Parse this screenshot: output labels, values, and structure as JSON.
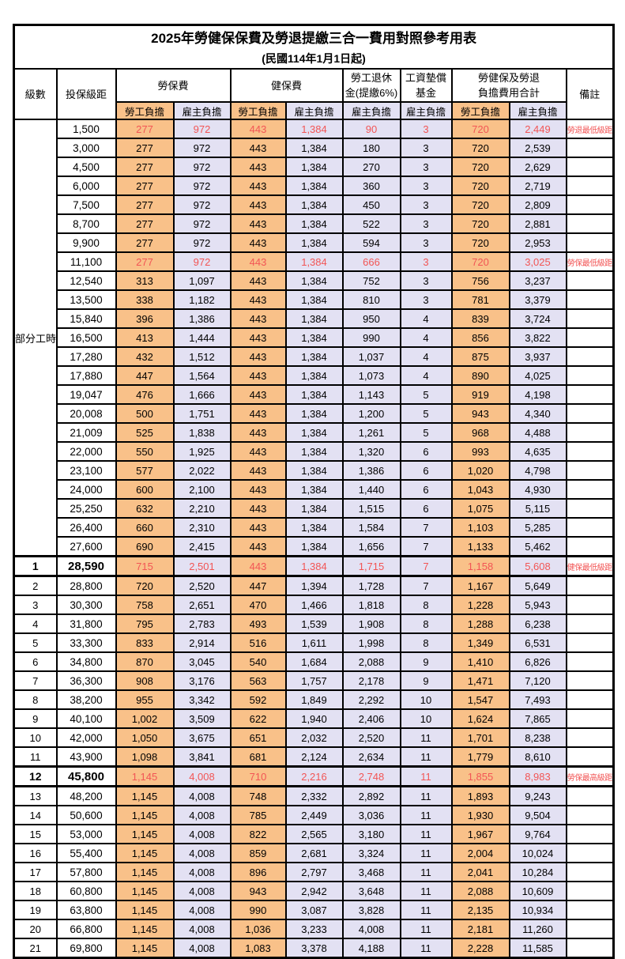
{
  "title": "2025年勞健保保費及勞退提繳三合一費用對照參考用表",
  "subtitle": "(民國114年1月1日起)",
  "header": {
    "level": "級數",
    "bracket": "投保級距",
    "labor_insurance": "勞保費",
    "health_insurance": "健保費",
    "pension_line1": "勞工退休",
    "pension_line2": "金(提繳6%)",
    "wage_fund_line1": "工資墊償",
    "wage_fund_line2": "基金",
    "total_line1": "勞健保及勞退",
    "total_line2": "負擔費用合計",
    "remark": "備註",
    "employee": "勞工負擔",
    "employer": "雇主負擔"
  },
  "part_time_label": "部分工時",
  "colors": {
    "employee_bg": "#f9c189",
    "employer_bg": "#e3e1f3",
    "highlight_text": "#f25555",
    "remark_text": "#fb4b4b",
    "border": "#000000"
  },
  "rows": [
    {
      "level": "",
      "bracket": "1,500",
      "c": [
        "277",
        "972",
        "443",
        "1,384",
        "90",
        "3",
        "720",
        "2,449"
      ],
      "remark": "勞退最低級距",
      "red": true,
      "em": false,
      "thick": false
    },
    {
      "level": "",
      "bracket": "3,000",
      "c": [
        "277",
        "972",
        "443",
        "1,384",
        "180",
        "3",
        "720",
        "2,539"
      ],
      "remark": "",
      "red": false,
      "em": false,
      "thick": false
    },
    {
      "level": "",
      "bracket": "4,500",
      "c": [
        "277",
        "972",
        "443",
        "1,384",
        "270",
        "3",
        "720",
        "2,629"
      ],
      "remark": "",
      "red": false,
      "em": false,
      "thick": false
    },
    {
      "level": "",
      "bracket": "6,000",
      "c": [
        "277",
        "972",
        "443",
        "1,384",
        "360",
        "3",
        "720",
        "2,719"
      ],
      "remark": "",
      "red": false,
      "em": false,
      "thick": false
    },
    {
      "level": "",
      "bracket": "7,500",
      "c": [
        "277",
        "972",
        "443",
        "1,384",
        "450",
        "3",
        "720",
        "2,809"
      ],
      "remark": "",
      "red": false,
      "em": false,
      "thick": false
    },
    {
      "level": "",
      "bracket": "8,700",
      "c": [
        "277",
        "972",
        "443",
        "1,384",
        "522",
        "3",
        "720",
        "2,881"
      ],
      "remark": "",
      "red": false,
      "em": false,
      "thick": false
    },
    {
      "level": "",
      "bracket": "9,900",
      "c": [
        "277",
        "972",
        "443",
        "1,384",
        "594",
        "3",
        "720",
        "2,953"
      ],
      "remark": "",
      "red": false,
      "em": false,
      "thick": false
    },
    {
      "level": "",
      "bracket": "11,100",
      "c": [
        "277",
        "972",
        "443",
        "1,384",
        "666",
        "3",
        "720",
        "3,025"
      ],
      "remark": "勞保最低級距",
      "red": true,
      "em": false,
      "thick": false
    },
    {
      "level": "",
      "bracket": "12,540",
      "c": [
        "313",
        "1,097",
        "443",
        "1,384",
        "752",
        "3",
        "756",
        "3,237"
      ],
      "remark": "",
      "red": false,
      "em": false,
      "thick": false
    },
    {
      "level": "",
      "bracket": "13,500",
      "c": [
        "338",
        "1,182",
        "443",
        "1,384",
        "810",
        "3",
        "781",
        "3,379"
      ],
      "remark": "",
      "red": false,
      "em": false,
      "thick": false
    },
    {
      "level": "",
      "bracket": "15,840",
      "c": [
        "396",
        "1,386",
        "443",
        "1,384",
        "950",
        "4",
        "839",
        "3,724"
      ],
      "remark": "",
      "red": false,
      "em": false,
      "thick": false
    },
    {
      "level": "",
      "bracket": "16,500",
      "c": [
        "413",
        "1,444",
        "443",
        "1,384",
        "990",
        "4",
        "856",
        "3,822"
      ],
      "remark": "",
      "red": false,
      "em": false,
      "thick": false
    },
    {
      "level": "",
      "bracket": "17,280",
      "c": [
        "432",
        "1,512",
        "443",
        "1,384",
        "1,037",
        "4",
        "875",
        "3,937"
      ],
      "remark": "",
      "red": false,
      "em": false,
      "thick": false
    },
    {
      "level": "",
      "bracket": "17,880",
      "c": [
        "447",
        "1,564",
        "443",
        "1,384",
        "1,073",
        "4",
        "890",
        "4,025"
      ],
      "remark": "",
      "red": false,
      "em": false,
      "thick": false
    },
    {
      "level": "",
      "bracket": "19,047",
      "c": [
        "476",
        "1,666",
        "443",
        "1,384",
        "1,143",
        "5",
        "919",
        "4,198"
      ],
      "remark": "",
      "red": false,
      "em": false,
      "thick": false
    },
    {
      "level": "",
      "bracket": "20,008",
      "c": [
        "500",
        "1,751",
        "443",
        "1,384",
        "1,200",
        "5",
        "943",
        "4,340"
      ],
      "remark": "",
      "red": false,
      "em": false,
      "thick": false
    },
    {
      "level": "",
      "bracket": "21,009",
      "c": [
        "525",
        "1,838",
        "443",
        "1,384",
        "1,261",
        "5",
        "968",
        "4,488"
      ],
      "remark": "",
      "red": false,
      "em": false,
      "thick": false
    },
    {
      "level": "",
      "bracket": "22,000",
      "c": [
        "550",
        "1,925",
        "443",
        "1,384",
        "1,320",
        "6",
        "993",
        "4,635"
      ],
      "remark": "",
      "red": false,
      "em": false,
      "thick": false
    },
    {
      "level": "",
      "bracket": "23,100",
      "c": [
        "577",
        "2,022",
        "443",
        "1,384",
        "1,386",
        "6",
        "1,020",
        "4,798"
      ],
      "remark": "",
      "red": false,
      "em": false,
      "thick": false
    },
    {
      "level": "",
      "bracket": "24,000",
      "c": [
        "600",
        "2,100",
        "443",
        "1,384",
        "1,440",
        "6",
        "1,043",
        "4,930"
      ],
      "remark": "",
      "red": false,
      "em": false,
      "thick": false
    },
    {
      "level": "",
      "bracket": "25,250",
      "c": [
        "632",
        "2,210",
        "443",
        "1,384",
        "1,515",
        "6",
        "1,075",
        "5,115"
      ],
      "remark": "",
      "red": false,
      "em": false,
      "thick": false
    },
    {
      "level": "",
      "bracket": "26,400",
      "c": [
        "660",
        "2,310",
        "443",
        "1,384",
        "1,584",
        "7",
        "1,103",
        "5,285"
      ],
      "remark": "",
      "red": false,
      "em": false,
      "thick": false
    },
    {
      "level": "",
      "bracket": "27,600",
      "c": [
        "690",
        "2,415",
        "443",
        "1,384",
        "1,656",
        "7",
        "1,133",
        "5,462"
      ],
      "remark": "",
      "red": false,
      "em": false,
      "thick": false
    },
    {
      "level": "1",
      "bracket": "28,590",
      "c": [
        "715",
        "2,501",
        "443",
        "1,384",
        "1,715",
        "7",
        "1,158",
        "5,608"
      ],
      "remark": "健保最低級距",
      "red": true,
      "em": true,
      "thick": true
    },
    {
      "level": "2",
      "bracket": "28,800",
      "c": [
        "720",
        "2,520",
        "447",
        "1,394",
        "1,728",
        "7",
        "1,167",
        "5,649"
      ],
      "remark": "",
      "red": false,
      "em": false,
      "thick": false
    },
    {
      "level": "3",
      "bracket": "30,300",
      "c": [
        "758",
        "2,651",
        "470",
        "1,466",
        "1,818",
        "8",
        "1,228",
        "5,943"
      ],
      "remark": "",
      "red": false,
      "em": false,
      "thick": false
    },
    {
      "level": "4",
      "bracket": "31,800",
      "c": [
        "795",
        "2,783",
        "493",
        "1,539",
        "1,908",
        "8",
        "1,288",
        "6,238"
      ],
      "remark": "",
      "red": false,
      "em": false,
      "thick": false
    },
    {
      "level": "5",
      "bracket": "33,300",
      "c": [
        "833",
        "2,914",
        "516",
        "1,611",
        "1,998",
        "8",
        "1,349",
        "6,531"
      ],
      "remark": "",
      "red": false,
      "em": false,
      "thick": false
    },
    {
      "level": "6",
      "bracket": "34,800",
      "c": [
        "870",
        "3,045",
        "540",
        "1,684",
        "2,088",
        "9",
        "1,410",
        "6,826"
      ],
      "remark": "",
      "red": false,
      "em": false,
      "thick": false
    },
    {
      "level": "7",
      "bracket": "36,300",
      "c": [
        "908",
        "3,176",
        "563",
        "1,757",
        "2,178",
        "9",
        "1,471",
        "7,120"
      ],
      "remark": "",
      "red": false,
      "em": false,
      "thick": false
    },
    {
      "level": "8",
      "bracket": "38,200",
      "c": [
        "955",
        "3,342",
        "592",
        "1,849",
        "2,292",
        "10",
        "1,547",
        "7,493"
      ],
      "remark": "",
      "red": false,
      "em": false,
      "thick": false
    },
    {
      "level": "9",
      "bracket": "40,100",
      "c": [
        "1,002",
        "3,509",
        "622",
        "1,940",
        "2,406",
        "10",
        "1,624",
        "7,865"
      ],
      "remark": "",
      "red": false,
      "em": false,
      "thick": false
    },
    {
      "level": "10",
      "bracket": "42,000",
      "c": [
        "1,050",
        "3,675",
        "651",
        "2,032",
        "2,520",
        "11",
        "1,701",
        "8,238"
      ],
      "remark": "",
      "red": false,
      "em": false,
      "thick": false
    },
    {
      "level": "11",
      "bracket": "43,900",
      "c": [
        "1,098",
        "3,841",
        "681",
        "2,124",
        "2,634",
        "11",
        "1,779",
        "8,610"
      ],
      "remark": "",
      "red": false,
      "em": false,
      "thick": false
    },
    {
      "level": "12",
      "bracket": "45,800",
      "c": [
        "1,145",
        "4,008",
        "710",
        "2,216",
        "2,748",
        "11",
        "1,855",
        "8,983"
      ],
      "remark": "勞保最高級距",
      "red": true,
      "em": true,
      "thick": true
    },
    {
      "level": "13",
      "bracket": "48,200",
      "c": [
        "1,145",
        "4,008",
        "748",
        "2,332",
        "2,892",
        "11",
        "1,893",
        "9,243"
      ],
      "remark": "",
      "red": false,
      "em": false,
      "thick": false
    },
    {
      "level": "14",
      "bracket": "50,600",
      "c": [
        "1,145",
        "4,008",
        "785",
        "2,449",
        "3,036",
        "11",
        "1,930",
        "9,504"
      ],
      "remark": "",
      "red": false,
      "em": false,
      "thick": false
    },
    {
      "level": "15",
      "bracket": "53,000",
      "c": [
        "1,145",
        "4,008",
        "822",
        "2,565",
        "3,180",
        "11",
        "1,967",
        "9,764"
      ],
      "remark": "",
      "red": false,
      "em": false,
      "thick": false
    },
    {
      "level": "16",
      "bracket": "55,400",
      "c": [
        "1,145",
        "4,008",
        "859",
        "2,681",
        "3,324",
        "11",
        "2,004",
        "10,024"
      ],
      "remark": "",
      "red": false,
      "em": false,
      "thick": false
    },
    {
      "level": "17",
      "bracket": "57,800",
      "c": [
        "1,145",
        "4,008",
        "896",
        "2,797",
        "3,468",
        "11",
        "2,041",
        "10,284"
      ],
      "remark": "",
      "red": false,
      "em": false,
      "thick": false
    },
    {
      "level": "18",
      "bracket": "60,800",
      "c": [
        "1,145",
        "4,008",
        "943",
        "2,942",
        "3,648",
        "11",
        "2,088",
        "10,609"
      ],
      "remark": "",
      "red": false,
      "em": false,
      "thick": false
    },
    {
      "level": "19",
      "bracket": "63,800",
      "c": [
        "1,145",
        "4,008",
        "990",
        "3,087",
        "3,828",
        "11",
        "2,135",
        "10,934"
      ],
      "remark": "",
      "red": false,
      "em": false,
      "thick": false
    },
    {
      "level": "20",
      "bracket": "66,800",
      "c": [
        "1,145",
        "4,008",
        "1,036",
        "3,233",
        "4,008",
        "11",
        "2,181",
        "11,260"
      ],
      "remark": "",
      "red": false,
      "em": false,
      "thick": false
    },
    {
      "level": "21",
      "bracket": "69,800",
      "c": [
        "1,145",
        "4,008",
        "1,083",
        "3,378",
        "4,188",
        "11",
        "2,228",
        "11,585"
      ],
      "remark": "",
      "red": false,
      "em": false,
      "thick": false
    }
  ]
}
